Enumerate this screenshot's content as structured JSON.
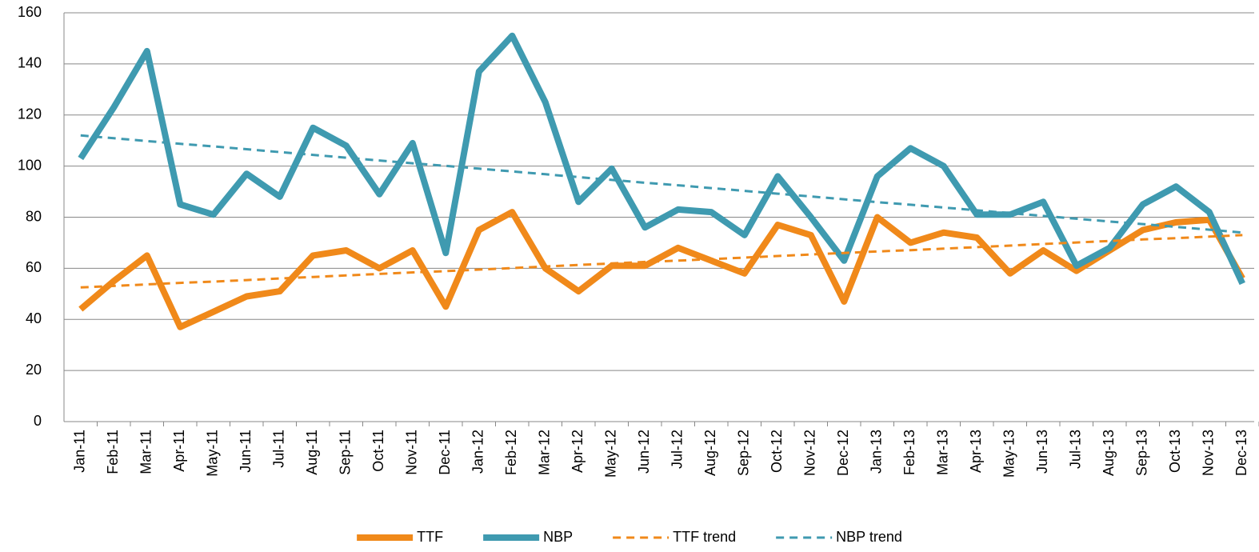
{
  "chart_data": {
    "type": "line",
    "categories": [
      "Jan-11",
      "Feb-11",
      "Mar-11",
      "Apr-11",
      "May-11",
      "Jun-11",
      "Jul-11",
      "Aug-11",
      "Sep-11",
      "Oct-11",
      "Nov-11",
      "Dec-11",
      "Jan-12",
      "Feb-12",
      "Mar-12",
      "Apr-12",
      "May-12",
      "Jun-12",
      "Jul-12",
      "Aug-12",
      "Sep-12",
      "Oct-12",
      "Nov-12",
      "Dec-12",
      "Jan-13",
      "Feb-13",
      "Mar-13",
      "Apr-13",
      "May-13",
      "Jun-13",
      "Jul-13",
      "Aug-13",
      "Sep-13",
      "Oct-13",
      "Nov-13",
      "Dec-13"
    ],
    "series": [
      {
        "name": "TTF",
        "color": "#f0891a",
        "style": "solid",
        "values": [
          44,
          55,
          65,
          37,
          43,
          49,
          51,
          65,
          67,
          60,
          67,
          45,
          75,
          82,
          60,
          51,
          61,
          61,
          68,
          63,
          58,
          77,
          73,
          47,
          80,
          70,
          74,
          72,
          58,
          67,
          59,
          67,
          75,
          78,
          79,
          56
        ]
      },
      {
        "name": "NBP",
        "color": "#3f9ab0",
        "style": "solid",
        "values": [
          103,
          123,
          145,
          85,
          81,
          97,
          88,
          115,
          108,
          89,
          109,
          66,
          137,
          151,
          125,
          86,
          99,
          76,
          83,
          82,
          73,
          96,
          80,
          63,
          96,
          107,
          100,
          81,
          81,
          86,
          61,
          68,
          85,
          92,
          82,
          54
        ]
      },
      {
        "name": "TTF trend",
        "color": "#f0891a",
        "style": "dashed",
        "values": [
          52.5,
          53.1,
          53.7,
          54.3,
          54.8,
          55.4,
          56.0,
          56.6,
          57.2,
          57.8,
          58.4,
          58.9,
          59.5,
          60.1,
          60.7,
          61.3,
          61.9,
          62.5,
          63.0,
          63.6,
          64.2,
          64.8,
          65.4,
          66.0,
          66.6,
          67.1,
          67.7,
          68.3,
          68.9,
          69.5,
          70.1,
          70.7,
          71.3,
          71.8,
          72.4,
          73.0
        ]
      },
      {
        "name": "NBP trend",
        "color": "#3f9ab0",
        "style": "dashed",
        "values": [
          112,
          110.9,
          109.8,
          108.7,
          107.7,
          106.6,
          105.5,
          104.4,
          103.3,
          102.2,
          101.1,
          100.1,
          99.0,
          97.9,
          96.8,
          95.7,
          94.6,
          93.5,
          92.5,
          91.4,
          90.3,
          89.2,
          88.1,
          87.0,
          85.9,
          84.9,
          83.8,
          82.7,
          81.6,
          80.5,
          79.4,
          78.3,
          77.3,
          76.2,
          75.1,
          74.0
        ]
      }
    ],
    "ylim": [
      0,
      160
    ],
    "yticks": [
      0,
      20,
      40,
      60,
      80,
      100,
      120,
      140,
      160
    ],
    "grid": true,
    "legend": "bottom"
  }
}
